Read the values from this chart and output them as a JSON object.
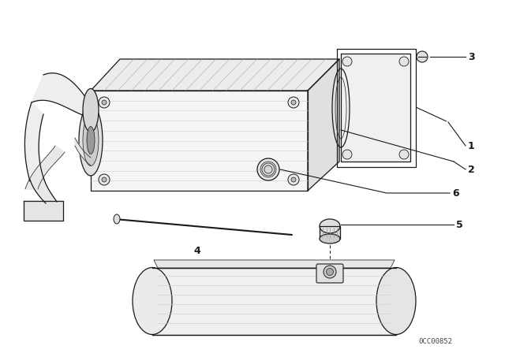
{
  "bg_color": "#ffffff",
  "line_color": "#1a1a1a",
  "watermark": "0CC00852",
  "lw_main": 0.9,
  "lw_thin": 0.5
}
